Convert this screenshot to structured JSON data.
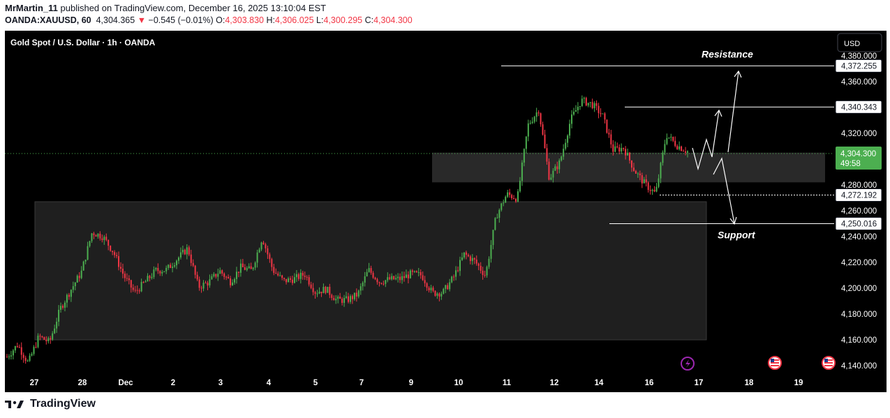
{
  "header": {
    "author": "MrMartin_11",
    "published_text": "published on TradingView.com, December 16, 2025 13:10:04 EST",
    "symbol": "OANDA:XAUUSD, 60",
    "last": "4,304.365",
    "change_arrow": "▼",
    "change": "−0.545 (−0.01%)",
    "o_label": "O:",
    "o_value": "4,303.830",
    "h_label": "H:",
    "h_value": "4,306.025",
    "l_label": "L:",
    "l_value": "4,300.295",
    "c_label": "C:",
    "c_value": "4,304.300"
  },
  "chart_title": "Gold Spot / U.S. Dollar · 1h · OANDA",
  "currency_button": "USD",
  "footer_brand": "TradingView",
  "colors": {
    "background": "#000000",
    "up": "#4caf50",
    "down": "#f23645",
    "zone": "#2a2a2a",
    "annotation": "#ffffff",
    "event_icon": "#9c27b0"
  },
  "icons": [
    "lightning-event-icon",
    "us-flag-event-icon",
    "us-flag-event-icon"
  ],
  "chart_data": {
    "type": "candlestick",
    "title": "Gold Spot / U.S. Dollar · 1h · OANDA",
    "y_axis": {
      "range": [
        4130,
        4380
      ],
      "ticks": [
        "4,140.000",
        "4,160.000",
        "4,180.000",
        "4,200.000",
        "4,220.000",
        "4,240.000",
        "4,260.000",
        "4,280.000",
        "4,300.000",
        "4,320.000",
        "4,340.000",
        "4,360.000",
        "4,380.000"
      ],
      "tick_values": [
        4140,
        4160,
        4180,
        4200,
        4220,
        4240,
        4260,
        4280,
        4300,
        4320,
        4340,
        4360,
        4380
      ]
    },
    "x_axis": {
      "tick_labels": [
        "27",
        "28",
        "Dec",
        "2",
        "3",
        "4",
        "5",
        "7",
        "9",
        "10",
        "11",
        "12",
        "14",
        "16",
        "17",
        "18",
        "19"
      ]
    },
    "price_labels": [
      {
        "text": "4,372.255",
        "value": 4372.255,
        "style": "outlined"
      },
      {
        "text": "4,340.343",
        "value": 4340.343,
        "style": "outlined"
      },
      {
        "text": "4,304.300",
        "value": 4304.3,
        "style": "current",
        "countdown": "49:58"
      },
      {
        "text": "4,272.192",
        "value": 4272.192,
        "style": "outlined"
      },
      {
        "text": "4,250.016",
        "value": 4250.016,
        "style": "outlined"
      }
    ],
    "annotations": [
      {
        "text": "Resistance",
        "level": 4372.255
      },
      {
        "text": "Support",
        "level": 4250.016
      }
    ],
    "zones": [
      {
        "name": "consolidation-range",
        "low": 4160,
        "high": 4267
      },
      {
        "name": "current-range",
        "low": 4282,
        "high": 4305
      }
    ],
    "levels": [
      4372.255,
      4340.343,
      4272.192,
      4250.016
    ],
    "path_points": [
      4146.8,
      4156.3,
      4142.0,
      4162.6,
      4158.1,
      4184.0,
      4198.7,
      4212.6,
      4243.3,
      4240.1,
      4228.2,
      4209.5,
      4196.6,
      4204.8,
      4213.7,
      4214.3,
      4222.6,
      4231.0,
      4200.9,
      4204.8,
      4213.5,
      4205.1,
      4216.3,
      4213.6,
      4239.4,
      4214.1,
      4205.5,
      4207.2,
      4210.9,
      4197.0,
      4199.4,
      4190.8,
      4190.9,
      4195.2,
      4214.3,
      4205.0,
      4206.9,
      4207.2,
      4211.1,
      4210.1,
      4196.3,
      4196.7,
      4208.5,
      4226.4,
      4220.8,
      4209.8,
      4255.7,
      4272.9,
      4269.5,
      4326.3,
      4338.5,
      4285.1,
      4297.8,
      4330.3,
      4345.4,
      4342.6,
      4333.9,
      4307.0,
      4308.7,
      4291.4,
      4280.5,
      4273.1,
      4318.9,
      4310.7,
      4306.0
    ]
  }
}
